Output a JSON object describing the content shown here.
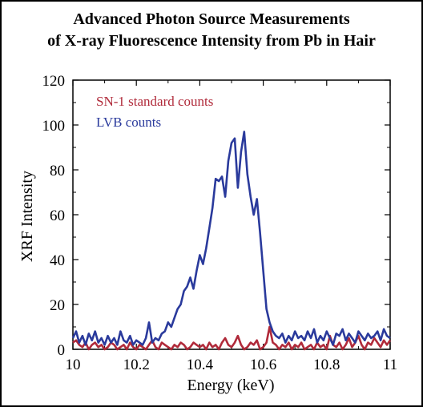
{
  "chart_data": {
    "type": "line",
    "title": [
      "Advanced Photon Source Measurements",
      "of X-ray Fluorescence Intensity from Pb in Hair"
    ],
    "xlabel": "Energy (keV)",
    "ylabel": "XRF Intensity",
    "xlim": [
      10,
      11
    ],
    "ylim": [
      0,
      120
    ],
    "xticks": [
      10,
      10.2,
      10.4,
      10.6,
      10.8,
      11
    ],
    "xtick_labels": [
      "10",
      "10.2",
      "10.4",
      "10.6",
      "10.8",
      "11"
    ],
    "yticks": [
      0,
      20,
      40,
      60,
      80,
      100,
      120
    ],
    "ytick_labels": [
      "0",
      "20",
      "40",
      "60",
      "80",
      "100",
      "120"
    ],
    "grid": false,
    "legend_position": "top-left",
    "series": [
      {
        "name": "SN-1 standard counts",
        "color": "#b02a3a",
        "x": [
          10.0,
          10.01,
          10.02,
          10.03,
          10.04,
          10.05,
          10.06,
          10.07,
          10.08,
          10.09,
          10.1,
          10.11,
          10.12,
          10.13,
          10.14,
          10.15,
          10.16,
          10.17,
          10.18,
          10.19,
          10.2,
          10.21,
          10.22,
          10.23,
          10.24,
          10.25,
          10.26,
          10.27,
          10.28,
          10.29,
          10.3,
          10.31,
          10.32,
          10.33,
          10.34,
          10.35,
          10.36,
          10.37,
          10.38,
          10.39,
          10.4,
          10.41,
          10.42,
          10.43,
          10.44,
          10.45,
          10.46,
          10.47,
          10.48,
          10.49,
          10.5,
          10.51,
          10.52,
          10.53,
          10.54,
          10.55,
          10.56,
          10.57,
          10.58,
          10.59,
          10.6,
          10.61,
          10.62,
          10.63,
          10.64,
          10.65,
          10.66,
          10.67,
          10.68,
          10.69,
          10.7,
          10.71,
          10.72,
          10.73,
          10.74,
          10.75,
          10.76,
          10.77,
          10.78,
          10.79,
          10.8,
          10.81,
          10.82,
          10.83,
          10.84,
          10.85,
          10.86,
          10.87,
          10.88,
          10.89,
          10.9,
          10.91,
          10.92,
          10.93,
          10.94,
          10.95,
          10.96,
          10.97,
          10.98,
          10.99,
          11.0
        ],
        "values": [
          3,
          4,
          2,
          1,
          3,
          0,
          2,
          3,
          1,
          2,
          0,
          1,
          3,
          2,
          0,
          1,
          2,
          0,
          3,
          1,
          0,
          2,
          1,
          0,
          2,
          4,
          1,
          0,
          3,
          2,
          1,
          0,
          2,
          1,
          3,
          2,
          0,
          1,
          3,
          2,
          1,
          2,
          0,
          3,
          1,
          2,
          0,
          3,
          5,
          2,
          1,
          3,
          6,
          2,
          0,
          1,
          3,
          2,
          4,
          0,
          1,
          3,
          10,
          3,
          2,
          0,
          2,
          1,
          3,
          0,
          2,
          1,
          3,
          0,
          1,
          2,
          0,
          3,
          1,
          2,
          0,
          6,
          2,
          1,
          3,
          0,
          2,
          5,
          1,
          3,
          6,
          2,
          0,
          3,
          2,
          5,
          3,
          1,
          4,
          2,
          4
        ]
      },
      {
        "name": "LVB counts",
        "color": "#2a3a9c",
        "x": [
          10.0,
          10.01,
          10.02,
          10.03,
          10.04,
          10.05,
          10.06,
          10.07,
          10.08,
          10.09,
          10.1,
          10.11,
          10.12,
          10.13,
          10.14,
          10.15,
          10.16,
          10.17,
          10.18,
          10.19,
          10.2,
          10.21,
          10.22,
          10.23,
          10.24,
          10.25,
          10.26,
          10.27,
          10.28,
          10.29,
          10.3,
          10.31,
          10.32,
          10.33,
          10.34,
          10.35,
          10.36,
          10.37,
          10.38,
          10.39,
          10.4,
          10.41,
          10.42,
          10.43,
          10.44,
          10.45,
          10.46,
          10.47,
          10.48,
          10.49,
          10.5,
          10.51,
          10.52,
          10.53,
          10.54,
          10.55,
          10.56,
          10.57,
          10.58,
          10.59,
          10.6,
          10.61,
          10.62,
          10.63,
          10.64,
          10.65,
          10.66,
          10.67,
          10.68,
          10.69,
          10.7,
          10.71,
          10.72,
          10.73,
          10.74,
          10.75,
          10.76,
          10.77,
          10.78,
          10.79,
          10.8,
          10.81,
          10.82,
          10.83,
          10.84,
          10.85,
          10.86,
          10.87,
          10.88,
          10.89,
          10.9,
          10.91,
          10.92,
          10.93,
          10.94,
          10.95,
          10.96,
          10.97,
          10.98,
          10.99,
          11.0
        ],
        "values": [
          5,
          8,
          3,
          6,
          2,
          7,
          4,
          8,
          3,
          5,
          2,
          6,
          3,
          5,
          2,
          8,
          4,
          3,
          6,
          2,
          4,
          3,
          2,
          5,
          12,
          3,
          5,
          4,
          7,
          8,
          12,
          10,
          14,
          18,
          20,
          26,
          28,
          32,
          27,
          35,
          42,
          38,
          45,
          54,
          63,
          76,
          75,
          77,
          68,
          84,
          92,
          94,
          72,
          88,
          97,
          78,
          68,
          60,
          67,
          52,
          35,
          18,
          12,
          8,
          6,
          5,
          7,
          3,
          6,
          4,
          8,
          5,
          6,
          4,
          8,
          5,
          9,
          3,
          6,
          4,
          8,
          5,
          2,
          7,
          6,
          9,
          4,
          7,
          5,
          3,
          8,
          6,
          4,
          7,
          5,
          6,
          8,
          4,
          9,
          6,
          5
        ]
      }
    ]
  }
}
